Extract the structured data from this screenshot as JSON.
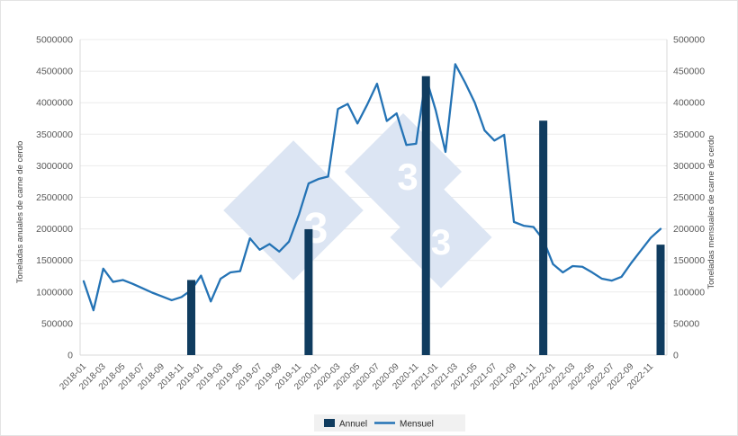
{
  "chart_data": {
    "type": "combo",
    "months": [
      "2018-01",
      "2018-02",
      "2018-03",
      "2018-04",
      "2018-05",
      "2018-06",
      "2018-07",
      "2018-08",
      "2018-09",
      "2018-10",
      "2018-11",
      "2018-12",
      "2019-01",
      "2019-02",
      "2019-03",
      "2019-04",
      "2019-05",
      "2019-06",
      "2019-07",
      "2019-08",
      "2019-09",
      "2019-10",
      "2019-11",
      "2019-12",
      "2020-01",
      "2020-02",
      "2020-03",
      "2020-04",
      "2020-05",
      "2020-06",
      "2020-07",
      "2020-08",
      "2020-09",
      "2020-10",
      "2020-11",
      "2020-12",
      "2021-01",
      "2021-02",
      "2021-03",
      "2021-04",
      "2021-05",
      "2021-06",
      "2021-07",
      "2021-08",
      "2021-09",
      "2021-10",
      "2021-11",
      "2021-12",
      "2022-01",
      "2022-02",
      "2022-03",
      "2022-04",
      "2022-05",
      "2022-06",
      "2022-07",
      "2022-08",
      "2022-09",
      "2022-10",
      "2022-11",
      "2022-12"
    ],
    "series": [
      {
        "name": "Annuel",
        "type": "bar",
        "axis": "left",
        "color": "#103c5f",
        "x": [
          "2018-12",
          "2019-12",
          "2020-12",
          "2021-12",
          "2022-12"
        ],
        "values": [
          1190000,
          1995000,
          4420000,
          3715000,
          1750000
        ]
      },
      {
        "name": "Mensuel",
        "type": "line",
        "axis": "right",
        "color": "#2473b5",
        "values": [
          117000,
          71000,
          137000,
          116000,
          119000,
          113000,
          106000,
          99000,
          93000,
          87000,
          92000,
          103000,
          126000,
          85000,
          121000,
          131000,
          133000,
          185000,
          167000,
          176000,
          164000,
          180000,
          222000,
          272000,
          279000,
          283000,
          390000,
          398000,
          367000,
          397000,
          430000,
          371000,
          383000,
          333000,
          335000,
          440000,
          388000,
          322000,
          461000,
          432000,
          400000,
          356000,
          340000,
          349000,
          211000,
          205000,
          203000,
          183000,
          144000,
          131000,
          141000,
          140000,
          131000,
          121000,
          118000,
          124000,
          146000,
          166000,
          186000,
          200000
        ]
      }
    ],
    "left_axis": {
      "label": "Toneladas anuales de carne de cerdo",
      "min": 0,
      "max": 5000000,
      "step": 500000,
      "tick_values": [
        0,
        500000,
        1000000,
        1500000,
        2000000,
        2500000,
        3000000,
        3500000,
        4000000,
        4500000,
        5000000
      ],
      "tick_labels": [
        "0",
        "500000",
        "1000000",
        "1500000",
        "2000000",
        "2500000",
        "3000000",
        "3500000",
        "4000000",
        "4500000",
        "5000000"
      ]
    },
    "right_axis": {
      "label": "Toneladas mensuales de carne de cerdo",
      "min": 0,
      "max": 500000,
      "step": 50000,
      "tick_labels": [
        "0",
        "50000",
        "100000",
        "150000",
        "200000",
        "250000",
        "300000",
        "350000",
        "400000",
        "450000",
        "500000"
      ]
    },
    "x_axis": {
      "tick_labels": [
        "2018-01",
        "2018-03",
        "2018-05",
        "2018-07",
        "2018-09",
        "2018-11",
        "2019-01",
        "2019-03",
        "2019-05",
        "2019-07",
        "2019-09",
        "2019-11",
        "2020-01",
        "2020-03",
        "2020-05",
        "2020-07",
        "2020-09",
        "2020-11",
        "2021-01",
        "2021-03",
        "2021-05",
        "2021-07",
        "2021-09",
        "2021-11",
        "2022-01",
        "2022-03",
        "2022-05",
        "2022-07",
        "2022-09",
        "2022-11"
      ]
    },
    "legend": {
      "items": [
        {
          "label": "Annuel"
        },
        {
          "label": "Mensuel"
        }
      ],
      "position": "bottom-center"
    },
    "watermark": {
      "digits": [
        "3",
        "3",
        "3"
      ]
    },
    "grid": "horizontal-only"
  }
}
